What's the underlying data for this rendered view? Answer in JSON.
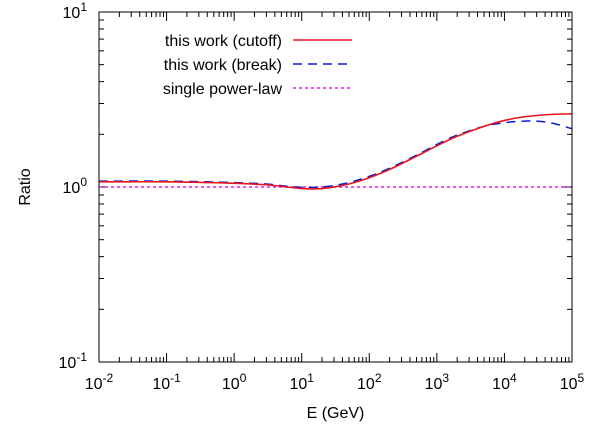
{
  "chart_data": {
    "type": "line",
    "title": "",
    "xlabel": "E (GeV)",
    "ylabel": "Ratio",
    "xscale": "log",
    "yscale": "log",
    "xlim": [
      0.01,
      100000
    ],
    "ylim": [
      0.1,
      10
    ],
    "grid": false,
    "legend_position": "top-left",
    "x_ticks": [
      {
        "base": "10",
        "exp": "-2",
        "value": 0.01
      },
      {
        "base": "10",
        "exp": "-1",
        "value": 0.1
      },
      {
        "base": "10",
        "exp": "0",
        "value": 1
      },
      {
        "base": "10",
        "exp": "1",
        "value": 10
      },
      {
        "base": "10",
        "exp": "2",
        "value": 100
      },
      {
        "base": "10",
        "exp": "3",
        "value": 1000
      },
      {
        "base": "10",
        "exp": "4",
        "value": 10000
      },
      {
        "base": "10",
        "exp": "5",
        "value": 100000
      }
    ],
    "y_ticks": [
      {
        "base": "10",
        "exp": "-1",
        "value": 0.1
      },
      {
        "base": "10",
        "exp": "0",
        "value": 1
      },
      {
        "base": "10",
        "exp": "1",
        "value": 10
      }
    ],
    "series": [
      {
        "name": "this work (cutoff)",
        "color": "#e8141e",
        "style": "solid",
        "x": [
          0.01,
          0.1,
          1,
          3,
          6,
          10,
          15,
          20,
          30,
          50,
          100,
          200,
          500,
          1000,
          2000,
          5000,
          10000,
          20000,
          50000,
          100000
        ],
        "y": [
          1.07,
          1.07,
          1.05,
          1.03,
          1.0,
          0.98,
          0.975,
          0.98,
          1.0,
          1.04,
          1.13,
          1.26,
          1.5,
          1.72,
          1.95,
          2.22,
          2.4,
          2.52,
          2.6,
          2.62
        ]
      },
      {
        "name": "this work (break)",
        "color": "#0a1ed2",
        "style": "dashed",
        "x": [
          0.01,
          0.1,
          1,
          3,
          6,
          10,
          15,
          20,
          30,
          50,
          100,
          200,
          500,
          1000,
          2000,
          5000,
          10000,
          20000,
          30000,
          50000,
          100000
        ],
        "y": [
          1.08,
          1.08,
          1.06,
          1.04,
          1.01,
          0.995,
          0.995,
          1.0,
          1.02,
          1.06,
          1.15,
          1.28,
          1.52,
          1.75,
          1.98,
          2.22,
          2.33,
          2.38,
          2.38,
          2.32,
          2.15
        ]
      },
      {
        "name": "single power-law",
        "color": "#e21ee2",
        "style": "dotted",
        "x": [
          0.01,
          100000
        ],
        "y": [
          1.0,
          1.0
        ]
      }
    ]
  }
}
